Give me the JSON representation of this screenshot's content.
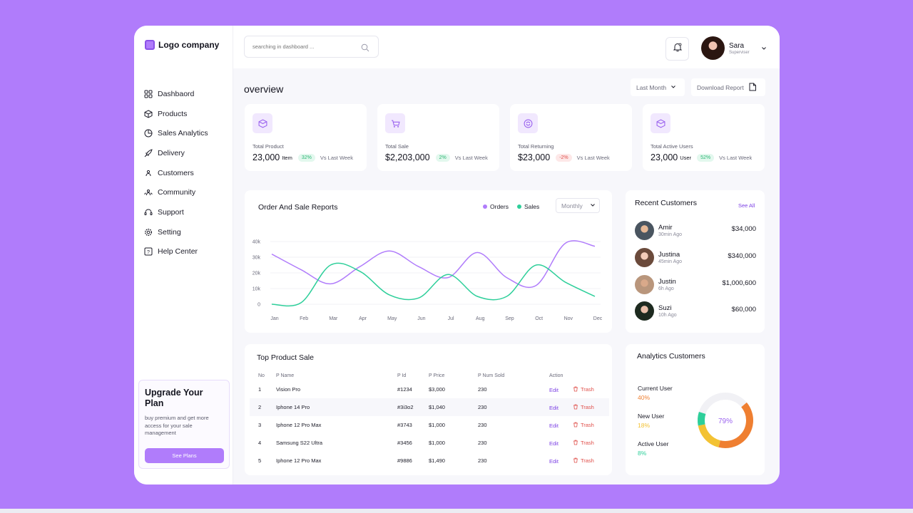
{
  "brand": {
    "name": "Logo company"
  },
  "sidebar": {
    "items": [
      {
        "label": "Dashbaord",
        "icon": "grid-icon"
      },
      {
        "label": "Products",
        "icon": "box-icon"
      },
      {
        "label": "Sales Analytics",
        "icon": "pie-chart-icon"
      },
      {
        "label": "Delivery",
        "icon": "rocket-icon"
      },
      {
        "label": "Customers",
        "icon": "user-icon"
      },
      {
        "label": "Community",
        "icon": "users-icon"
      },
      {
        "label": "Support",
        "icon": "headset-icon"
      },
      {
        "label": "Setting",
        "icon": "gear-icon"
      },
      {
        "label": "Help Center",
        "icon": "help-icon"
      }
    ],
    "upgrade": {
      "title": "Upgrade Your Plan",
      "text": "buy premium and get more access for your sale management",
      "button": "See Plans"
    }
  },
  "search": {
    "placeholder": "searching in dashboard ..."
  },
  "user": {
    "name": "Sara",
    "role": "Superviser"
  },
  "overview": {
    "title": "overview",
    "period": "Last Month",
    "download": "Download Report"
  },
  "stats": [
    {
      "label": "Total Product",
      "value": "23,000",
      "unit": "Item",
      "change": "32%",
      "trend": "up",
      "vs": "Vs Last Week"
    },
    {
      "label": "Total Sale",
      "value": "$2,203,000",
      "unit": "",
      "change": "2%",
      "trend": "up",
      "vs": "Vs Last Week"
    },
    {
      "label": "Total Returning",
      "value": "$23,000",
      "unit": "",
      "change": "-2%",
      "trend": "down",
      "vs": "Vs Last Week"
    },
    {
      "label": "Total Active Users",
      "value": "23,000",
      "unit": "User",
      "change": "52%",
      "trend": "up",
      "vs": "Vs Last Week"
    }
  ],
  "report": {
    "title": "Order And Sale Reports",
    "legend_orders": "Orders",
    "legend_sales": "Sales",
    "period": "Monthly"
  },
  "chart_data": {
    "type": "line",
    "title": "Order And Sale Reports",
    "categories": [
      "Jan",
      "Feb",
      "Mar",
      "Apr",
      "May",
      "Jun",
      "Jul",
      "Aug",
      "Sep",
      "Oct",
      "Nov",
      "Dec"
    ],
    "y_ticks": [
      "0",
      "10k",
      "20k",
      "30k",
      "40k"
    ],
    "ylim": [
      0,
      40000
    ],
    "series": [
      {
        "name": "Orders",
        "color": "#b07cfb",
        "values": [
          32000,
          22000,
          13000,
          24000,
          34000,
          24000,
          17000,
          33000,
          17000,
          12000,
          39000,
          37000
        ]
      },
      {
        "name": "Sales",
        "color": "#2ecf9a",
        "values": [
          0,
          1000,
          25000,
          21000,
          6000,
          4000,
          19000,
          5000,
          5000,
          25000,
          14000,
          5000
        ]
      }
    ],
    "legend": "top-right",
    "grid": true
  },
  "recent_customers": {
    "title": "Recent Customers",
    "see_all": "See All",
    "items": [
      {
        "name": "Amir",
        "time": "30min Ago",
        "amount": "$34,000"
      },
      {
        "name": "Justina",
        "time": "45min Ago",
        "amount": "$340,000"
      },
      {
        "name": "Justin",
        "time": "6h Ago",
        "amount": "$1,000,600"
      },
      {
        "name": "Suzi",
        "time": "10h Ago",
        "amount": "$60,000"
      }
    ]
  },
  "top_products": {
    "title": "Top Product Sale",
    "columns": [
      "No",
      "P Name",
      "P Id",
      "P Price",
      "P Num Sold",
      "Action"
    ],
    "edit_label": "Edit",
    "trash_label": "Trash",
    "rows": [
      [
        "1",
        "Vision Pro",
        "#1234",
        "$3,000",
        "230"
      ],
      [
        "2",
        "Iphone 14 Pro",
        "#3i3o2",
        "$1,040",
        "230"
      ],
      [
        "3",
        "Iphone 12 Pro Max",
        "#3743",
        "$1,000",
        "230"
      ],
      [
        "4",
        "Samsung S22 Ultra",
        "#3456",
        "$1,000",
        "230"
      ],
      [
        "5",
        "Iphone 12 Pro Max",
        "#9886",
        "$1,490",
        "230"
      ]
    ]
  },
  "analytics_customers": {
    "title": "Analytics Customers",
    "center": "79%",
    "segments": [
      {
        "label": "Current User",
        "value": "40%",
        "fraction": 0.4,
        "color": "#ef7f31"
      },
      {
        "label": "New User",
        "value": "18%",
        "fraction": 0.18,
        "color": "#f3c233"
      },
      {
        "label": "Active User",
        "value": "8%",
        "fraction": 0.08,
        "color": "#2ecf9a"
      }
    ]
  }
}
